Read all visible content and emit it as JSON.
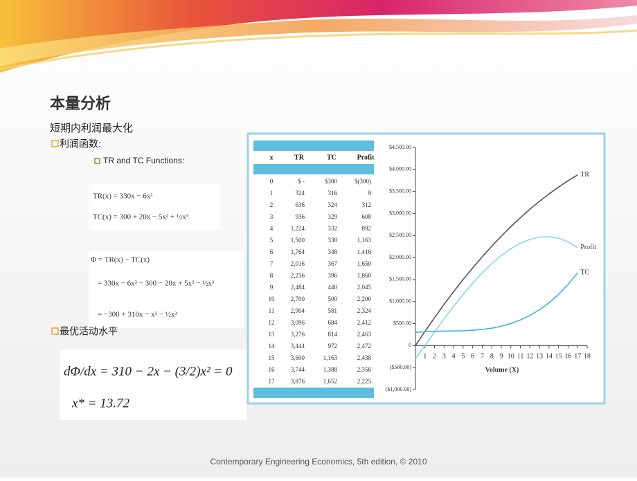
{
  "slide": {
    "title": "本量分析",
    "subtitle": "短期内利润最大化",
    "bullet1": "利润函数:",
    "sub_bullet": "TR and TC Functions:",
    "functions": [
      "TR(x) = 330x − 6x²",
      "TC(x) = 300 + 20x − 5x² + ½x³"
    ],
    "profit_function": [
      "Φ = TR(x) − TC(x)",
      "= 330x − 6x² − 300 − 20x + 5x² − ½x³",
      "= −300 + 310x − x² − ½x³"
    ],
    "bullet2": "最优活动水平",
    "optimum": [
      "dΦ/dx = 310 − 2x − (3/2)x² = 0",
      "x* = 13.72"
    ],
    "footer": "Contemporary Engineering Economics, 5th edition, © 2010"
  },
  "table": {
    "header": [
      "x",
      "TR",
      "TC",
      "Profit"
    ],
    "rows": [
      [
        "0",
        "$ -",
        "$300",
        "$(300)"
      ],
      [
        "1",
        "324",
        "316",
        "9"
      ],
      [
        "2",
        "636",
        "324",
        "312"
      ],
      [
        "3",
        "936",
        "329",
        "608"
      ],
      [
        "4",
        "1,224",
        "332",
        "892"
      ],
      [
        "5",
        "1,500",
        "338",
        "1,163"
      ],
      [
        "6",
        "1,764",
        "348",
        "1,416"
      ],
      [
        "7",
        "2,016",
        "367",
        "1,650"
      ],
      [
        "8",
        "2,256",
        "396",
        "1,860"
      ],
      [
        "9",
        "2,484",
        "440",
        "2,045"
      ],
      [
        "10",
        "2,700",
        "500",
        "2,200"
      ],
      [
        "11",
        "2,904",
        "581",
        "2,324"
      ],
      [
        "12",
        "3,096",
        "684",
        "2,412"
      ],
      [
        "13",
        "3,276",
        "814",
        "2,463"
      ],
      [
        "14",
        "3,444",
        "972",
        "2,472"
      ],
      [
        "15",
        "3,600",
        "1,163",
        "2,438"
      ],
      [
        "16",
        "3,744",
        "1,388",
        "2,356"
      ],
      [
        "17",
        "3,876",
        "1,652",
        "2,225"
      ]
    ]
  },
  "chart_data": {
    "type": "line",
    "x_label": "Volume (X)",
    "x": [
      0,
      1,
      2,
      3,
      4,
      5,
      6,
      7,
      8,
      9,
      10,
      11,
      12,
      13,
      14,
      15,
      16,
      17
    ],
    "series": [
      {
        "name": "TR",
        "color": "#555555",
        "values": [
          0,
          324,
          636,
          936,
          1224,
          1500,
          1764,
          2016,
          2256,
          2484,
          2700,
          2904,
          3096,
          3276,
          3444,
          3600,
          3744,
          3876
        ]
      },
      {
        "name": "Profit",
        "color": "#8ad6ec",
        "values": [
          -300,
          9,
          312,
          608,
          892,
          1163,
          1416,
          1650,
          1860,
          2045,
          2200,
          2324,
          2412,
          2463,
          2472,
          2438,
          2356,
          2225
        ]
      },
      {
        "name": "TC",
        "color": "#3cb4dc",
        "values": [
          300,
          316,
          324,
          329,
          332,
          338,
          348,
          367,
          396,
          440,
          500,
          581,
          684,
          814,
          972,
          1163,
          1388,
          1652
        ]
      }
    ],
    "xlim": [
      0,
      18
    ],
    "xticks": [
      1,
      2,
      3,
      4,
      5,
      6,
      7,
      8,
      9,
      10,
      11,
      12,
      13,
      14,
      15,
      16,
      17,
      18
    ],
    "ylim": [
      -1000,
      4500
    ],
    "yticks": [
      {
        "value": -1000,
        "label": "($1,000.00)"
      },
      {
        "value": -500,
        "label": "($500.00)"
      },
      0,
      {
        "value": 500,
        "label": "$500.00"
      },
      {
        "value": 1000,
        "label": "$1,000.00"
      },
      {
        "value": 1500,
        "label": "$1,500.00"
      },
      {
        "value": 2000,
        "label": "$2,000.00"
      },
      {
        "value": 2500,
        "label": "$2,500.00"
      },
      {
        "value": 3000,
        "label": "$3,000.00"
      },
      {
        "value": 3500,
        "label": "$3,500.00"
      },
      {
        "value": 4000,
        "label": "$4,000.00"
      },
      {
        "value": 4500,
        "label": "$4,500.00"
      }
    ]
  }
}
